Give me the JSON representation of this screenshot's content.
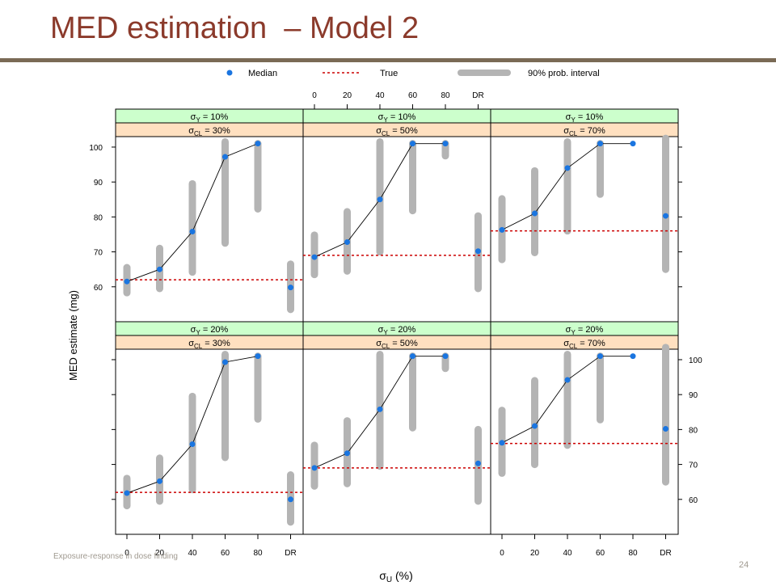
{
  "slide": {
    "title": "MED estimation  – Model 2",
    "footer": "Exposure-response in dose finding",
    "page_number": "24"
  },
  "colors": {
    "title": "#8b3a2b",
    "strip_sigma_y": "#ccffcc",
    "strip_sigma_cl": "#ffe0c0",
    "median_point": "#1a75e0",
    "true_line": "#cc0000",
    "interval": "#b4b4b4"
  },
  "chart_data": {
    "type": "line",
    "xlabel": "σ_U (%)",
    "ylabel": "MED estimate (mg)",
    "x_ticks": [
      "0",
      "20",
      "40",
      "60",
      "80",
      "DR"
    ],
    "y_ticks": [
      60,
      70,
      80,
      90,
      100
    ],
    "ylim": [
      50,
      103
    ],
    "legend": {
      "position": "top",
      "items": [
        {
          "label": "Median",
          "kind": "point"
        },
        {
          "label": "True",
          "kind": "dashed-line"
        },
        {
          "label": "90% prob. interval",
          "kind": "thick-bar"
        }
      ]
    },
    "panels": [
      {
        "sigma_y": "10%",
        "sigma_cl": "30%",
        "true": 62,
        "median": [
          61.5,
          65,
          75.8,
          97.2,
          101
        ],
        "median_dr": 59.8,
        "intervals": [
          [
            58.3,
            65.5
          ],
          [
            59.5,
            71
          ],
          [
            64.2,
            89.5
          ],
          [
            72.5,
            101.5
          ],
          [
            82.3,
            101
          ]
        ],
        "interval_dr": [
          53.5,
          66.5
        ]
      },
      {
        "sigma_y": "10%",
        "sigma_cl": "50%",
        "true": 69,
        "median": [
          68.5,
          72.8,
          85,
          101,
          101
        ],
        "median_dr": 70.2,
        "intervals": [
          [
            63.5,
            74.8
          ],
          [
            64.5,
            81.5
          ],
          [
            70,
            101.5
          ],
          [
            81.8,
            101
          ],
          [
            97.5,
            101
          ]
        ],
        "interval_dr": [
          59.5,
          80.3
        ]
      },
      {
        "sigma_y": "10%",
        "sigma_cl": "70%",
        "true": 76,
        "median": [
          76.3,
          81,
          94,
          101,
          101
        ],
        "median_dr": 80.3,
        "intervals": [
          [
            67.8,
            85.2
          ],
          [
            69.8,
            93.2
          ],
          [
            76,
            101.5
          ],
          [
            86.5,
            101
          ],
          null
        ],
        "interval_dr": [
          65,
          102.5
        ]
      },
      {
        "sigma_y": "20%",
        "sigma_cl": "30%",
        "true": 62,
        "median": [
          61.8,
          65.2,
          75.8,
          99.3,
          101
        ],
        "median_dr": 60,
        "intervals": [
          [
            58.2,
            66
          ],
          [
            59.5,
            71.8
          ],
          [
            62.8,
            89.5
          ],
          [
            72,
            101.5
          ],
          [
            83,
            101
          ]
        ],
        "interval_dr": [
          53.5,
          67
        ]
      },
      {
        "sigma_y": "20%",
        "sigma_cl": "50%",
        "true": 69,
        "median": [
          69,
          73.2,
          85.8,
          101,
          101
        ],
        "median_dr": 70.3,
        "intervals": [
          [
            63.8,
            75.5
          ],
          [
            64.5,
            82.5
          ],
          [
            69.5,
            101.5
          ],
          [
            80.5,
            101
          ],
          [
            97.5,
            101
          ]
        ],
        "interval_dr": [
          59.5,
          80
        ]
      },
      {
        "sigma_y": "20%",
        "sigma_cl": "70%",
        "true": 76,
        "median": [
          76.2,
          81,
          94.2,
          101,
          101
        ],
        "median_dr": 80.2,
        "intervals": [
          [
            67.5,
            85.5
          ],
          [
            70,
            94
          ],
          [
            75.5,
            101.5
          ],
          [
            82.8,
            101
          ],
          null
        ],
        "interval_dr": [
          65,
          103.5
        ]
      }
    ],
    "strip_label_y": "σ_Y = ",
    "strip_label_cl": "σ_CL = "
  }
}
